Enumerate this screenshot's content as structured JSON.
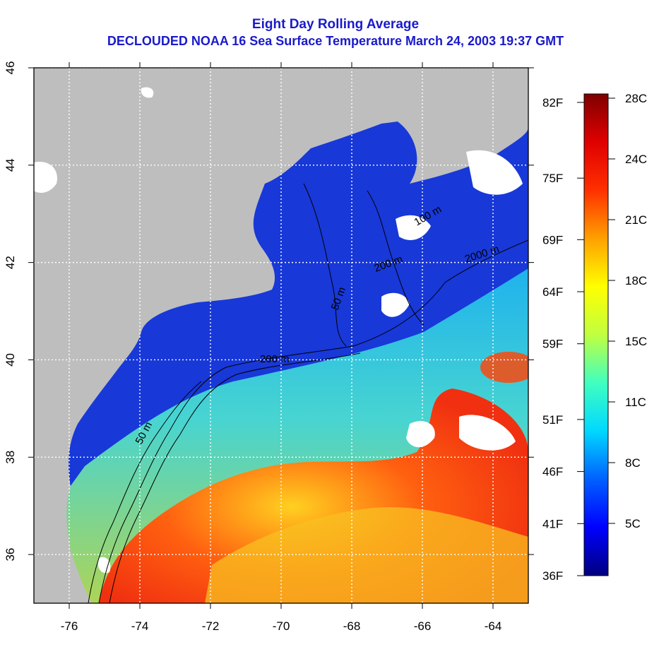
{
  "title": {
    "line1": "Eight Day Rolling Average",
    "line2": "DECLOUDED NOAA 16 Sea Surface Temperature March 24, 2003 19:37 GMT"
  },
  "map": {
    "lon_range": [
      -77,
      -63
    ],
    "lat_range": [
      35,
      46
    ],
    "x_ticks": [
      "-76",
      "-74",
      "-72",
      "-70",
      "-68",
      "-66",
      "-64"
    ],
    "y_ticks": [
      "36",
      "38",
      "40",
      "42",
      "44",
      "46"
    ],
    "contour_labels": [
      "50 m",
      "100 m",
      "200 m",
      "2000 m",
      "50 m",
      "200 m"
    ],
    "colors": {
      "land": "#bebebe",
      "cloud": "#ffffff",
      "cold": "#1a2ad6",
      "warm": "#f03010"
    }
  },
  "colorbar": {
    "celsius_labels": [
      "28C",
      "24C",
      "21C",
      "18C",
      "15C",
      "11C",
      "8C",
      "5C"
    ],
    "fahrenheit_labels": [
      "82F",
      "75F",
      "69F",
      "64F",
      "59F",
      "51F",
      "46F",
      "41F",
      "36F"
    ],
    "stops": [
      "#00007f",
      "#0000ff",
      "#0060ff",
      "#00d8ff",
      "#40ffc0",
      "#c0ff40",
      "#ffff00",
      "#ffa000",
      "#ff3000",
      "#e00000",
      "#7f0000"
    ]
  }
}
